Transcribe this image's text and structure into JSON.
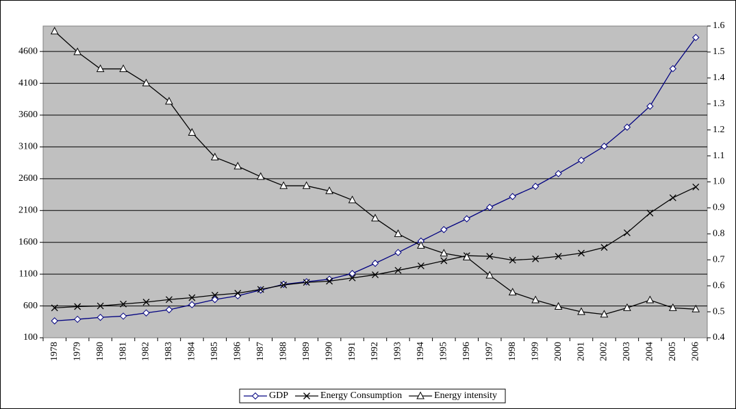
{
  "chart_data": {
    "type": "line",
    "categories": [
      "1978",
      "1979",
      "1980",
      "1981",
      "1982",
      "1983",
      "1984",
      "1985",
      "1986",
      "1987",
      "1988",
      "1989",
      "1990",
      "1991",
      "1992",
      "1993",
      "1994",
      "1995",
      "1996",
      "1997",
      "1998",
      "1999",
      "2000",
      "2001",
      "2002",
      "2003",
      "2004",
      "2005",
      "2006"
    ],
    "series": [
      {
        "name": "GDP",
        "color": "#000080",
        "marker": "diamond",
        "values": [
          365,
          390,
          420,
          440,
          490,
          540,
          620,
          700,
          760,
          850,
          940,
          980,
          1020,
          1110,
          1270,
          1440,
          1620,
          1800,
          1970,
          2150,
          2320,
          2480,
          2680,
          2890,
          3110,
          3410,
          3740,
          4330,
          4820
        ]
      },
      {
        "name": "Energy Consumption",
        "color": "#000000",
        "marker": "x",
        "values": [
          570,
          590,
          600,
          630,
          660,
          700,
          730,
          770,
          800,
          860,
          930,
          970,
          990,
          1040,
          1090,
          1160,
          1230,
          1310,
          1390,
          1380,
          1320,
          1340,
          1380,
          1430,
          1520,
          1750,
          2060,
          2300,
          2470
        ]
      },
      {
        "name": "Energy intensity",
        "color": "#000000",
        "marker": "triangle",
        "axis": "y2",
        "values": [
          1.58,
          1.5,
          1.435,
          1.435,
          1.38,
          1.31,
          1.19,
          1.095,
          1.06,
          1.02,
          0.985,
          0.985,
          0.965,
          0.93,
          0.86,
          0.8,
          0.755,
          0.725,
          0.71,
          0.64,
          0.575,
          0.545,
          0.52,
          0.5,
          0.49,
          0.515,
          0.545,
          0.515,
          0.51
        ]
      }
    ],
    "ylim": [
      100,
      5000
    ],
    "yticks": [
      100,
      600,
      1100,
      1600,
      2100,
      2600,
      3100,
      3600,
      4100,
      4600
    ],
    "y2lim": [
      0.4,
      1.6
    ],
    "y2ticks": [
      0.4,
      0.5,
      0.6,
      0.7,
      0.8,
      0.9,
      {
        "value": 1,
        "label": "1.0"
      },
      1.1,
      1.2,
      1.3,
      1.4,
      1.5,
      1.6
    ],
    "grid": true,
    "legend": "bottom"
  }
}
